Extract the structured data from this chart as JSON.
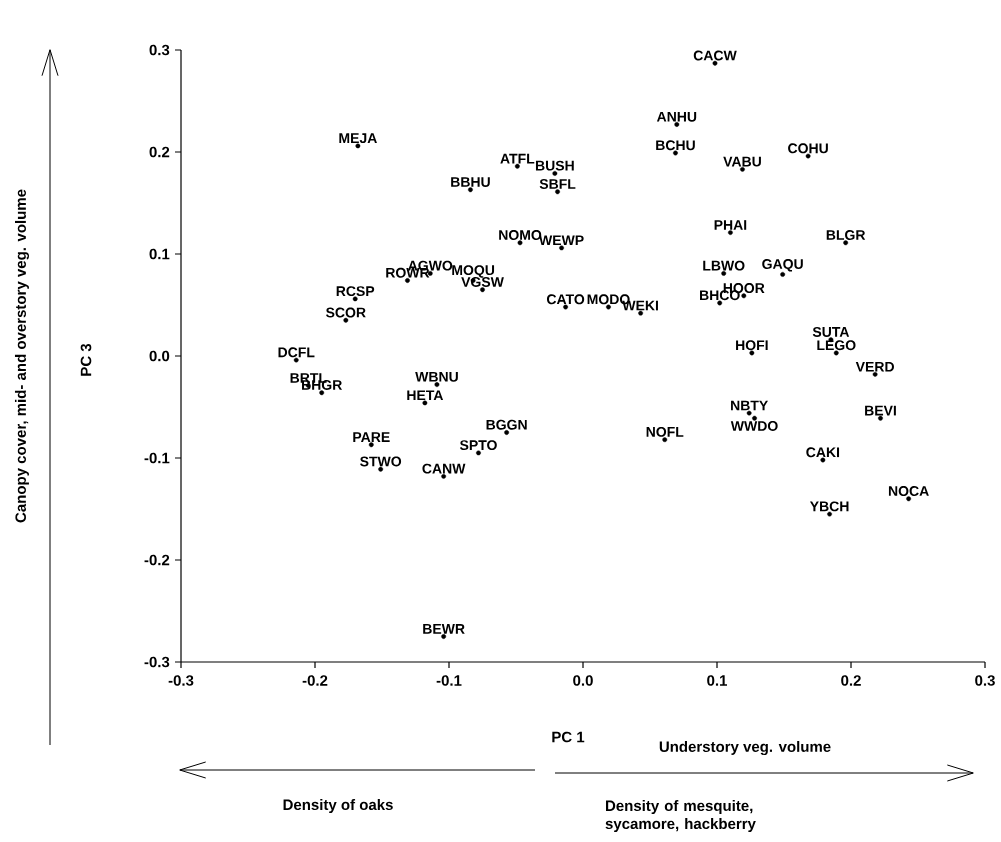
{
  "chart_data": {
    "type": "scatter",
    "xlabel": "PC 1",
    "ylabel": "PC 3",
    "marker": "circle",
    "xlim": [
      -0.3,
      0.3
    ],
    "ylim": [
      -0.3,
      0.3
    ],
    "xticks": [
      {
        "value": -0.3,
        "label": "-0.3"
      },
      {
        "value": -0.2,
        "label": "-0.2"
      },
      {
        "value": -0.1,
        "label": "-0.1"
      },
      {
        "value": 0,
        "label": "0.0"
      },
      {
        "value": 0.1,
        "label": "0.1"
      },
      {
        "value": 0.2,
        "label": "0.2"
      },
      {
        "value": 0.3,
        "label": "0.3"
      }
    ],
    "yticks": [
      {
        "value": -0.3,
        "label": "-0.3"
      },
      {
        "value": -0.2,
        "label": "-0.2"
      },
      {
        "value": -0.1,
        "label": "-0.1"
      },
      {
        "value": 0,
        "label": "0.0"
      },
      {
        "value": 0.1,
        "label": "0.1"
      },
      {
        "value": 0.2,
        "label": "0.2"
      },
      {
        "value": 0.3,
        "label": "0.3"
      }
    ],
    "x": [
      0.0985,
      0.07,
      0.069,
      0.119,
      0.168,
      -0.168,
      -0.049,
      -0.021,
      -0.019,
      -0.084,
      0.11,
      0.196,
      -0.047,
      -0.016,
      0.105,
      0.149,
      -0.114,
      -0.131,
      -0.082,
      -0.075,
      0.12,
      0.102,
      -0.17,
      -0.177,
      -0.013,
      0.019,
      0.043,
      0.185,
      0.189,
      0.126,
      0.218,
      -0.214,
      -0.205,
      -0.195,
      -0.109,
      -0.118,
      0.124,
      0.128,
      0.222,
      -0.057,
      0.061,
      -0.158,
      -0.078,
      -0.151,
      -0.104,
      0.179,
      0.243,
      0.184,
      -0.104
    ],
    "values": [
      0.287,
      0.227,
      0.199,
      0.183,
      0.196,
      0.206,
      0.186,
      0.179,
      0.161,
      0.163,
      0.121,
      0.111,
      0.111,
      0.106,
      0.081,
      0.08,
      0.081,
      0.074,
      0.074,
      0.065,
      0.059,
      0.052,
      0.056,
      0.035,
      0.048,
      0.048,
      0.042,
      0.016,
      0.003,
      0.003,
      -0.018,
      -0.004,
      -0.029,
      -0.036,
      -0.028,
      -0.046,
      -0.056,
      -0.061,
      -0.061,
      -0.075,
      -0.082,
      -0.087,
      -0.095,
      -0.111,
      -0.118,
      -0.102,
      -0.14,
      -0.155,
      -0.275
    ],
    "value_labels": [
      "CACW",
      "ANHU",
      "BCHU",
      "VABU",
      "COHU",
      "MEJA",
      "ATFL",
      "BUSH",
      "SBFL",
      "BBHU",
      "PHAI",
      "BLGR",
      "NOMO",
      "WEWP",
      "LBWO",
      "GAQU",
      "AGWO",
      "ROWR",
      "MOQU",
      "VGSW",
      "HOOR",
      "BHCO",
      "RCSP",
      "SCOR",
      "CATO",
      "MODO",
      "WEKI",
      "SUTA",
      "LEGO",
      "HOFI",
      "VERD",
      "DCFL",
      "BRTL",
      "BHGR",
      "WBNU",
      "HETA",
      "NBTY",
      "WWDO",
      "BEVI",
      "BGGN",
      "NOFL",
      "PARE",
      "SPTO",
      "STWO",
      "CANW",
      "CAKI",
      "NOCA",
      "YBCH",
      "BEWR"
    ],
    "annotations": [
      "Canopy cover, mid- and overstory veg. volume",
      "Understory veg. volume",
      "Density of oaks",
      "Density of mesquite, sycamore, hackberry"
    ]
  }
}
